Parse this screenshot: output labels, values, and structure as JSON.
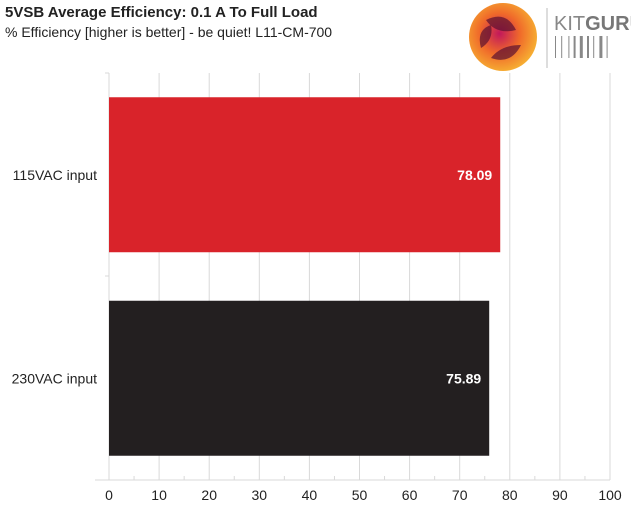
{
  "chart_data": {
    "type": "bar",
    "orientation": "horizontal",
    "title": "5VSB Average Efficiency: 0.1 A To Full Load",
    "subtitle": "% Efficiency [higher is better] - be quiet! L11-CM-700",
    "categories": [
      "115VAC input",
      "230VAC input"
    ],
    "values": [
      78.09,
      75.89
    ],
    "value_labels": [
      "78.09",
      "75.89"
    ],
    "colors": [
      "#d9232a",
      "#231f20"
    ],
    "xlim": [
      0,
      100
    ],
    "xticks": [
      "0",
      "10",
      "20",
      "30",
      "40",
      "50",
      "60",
      "70",
      "80",
      "90",
      "100"
    ],
    "grid": true
  },
  "logo": {
    "text_light": "KIT",
    "text_bold": "GURU"
  }
}
